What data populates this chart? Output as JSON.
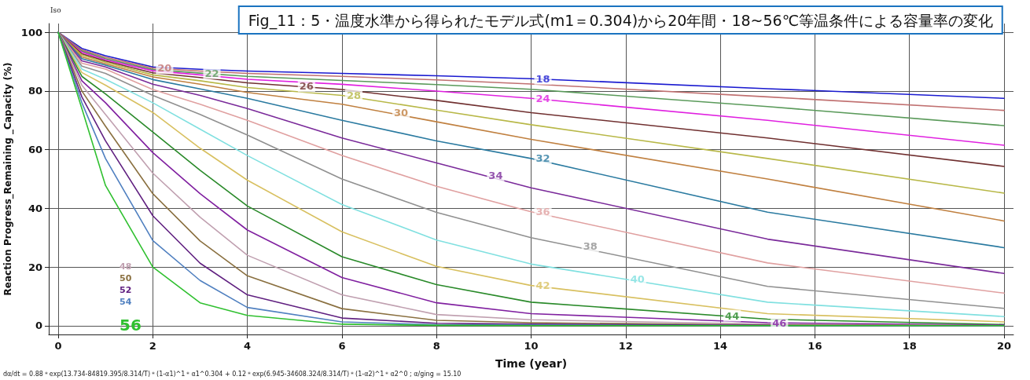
{
  "chart_data": {
    "type": "line",
    "title": "Fig_11：5・温度水準から得られたモデル式(m1＝0.304)から20年間・18~56℃等温条件による容量率の変化",
    "xlabel": "Time (year)",
    "ylabel": "Reaction Progress_Remaining _Capacity (%)",
    "x": [
      0,
      0.5,
      1,
      2,
      3,
      4,
      6,
      8,
      10,
      15,
      20
    ],
    "series": [
      {
        "color": "#1a1ad0",
        "values": [
          100,
          94.5,
          92,
          88.2,
          87.4,
          86.8,
          86,
          85.2,
          84.2,
          80.8,
          77.5
        ]
      },
      {
        "color": "#c07070",
        "values": [
          100,
          94,
          91.5,
          87.8,
          86.8,
          86,
          85,
          83.8,
          82.4,
          78,
          73.4
        ]
      },
      {
        "color": "#5a9a5a",
        "values": [
          100,
          93.6,
          91,
          87.3,
          86.1,
          85,
          83.6,
          82.2,
          80.6,
          74.7,
          68.2
        ]
      },
      {
        "color": "#e020e0",
        "values": [
          100,
          93.2,
          90.6,
          86.9,
          85.5,
          84,
          82.3,
          80,
          77.5,
          70,
          61.5
        ]
      },
      {
        "color": "#703030",
        "values": [
          100,
          92.7,
          90.2,
          86.2,
          84.6,
          82.8,
          80.5,
          76.8,
          72.6,
          64,
          54.3
        ]
      },
      {
        "color": "#b8b848",
        "values": [
          100,
          92.2,
          89.8,
          85.5,
          83.5,
          81.2,
          78.5,
          73.5,
          68.5,
          57,
          45.2
        ]
      },
      {
        "color": "#c08040",
        "values": [
          100,
          91.6,
          89.3,
          84.8,
          82.3,
          79.5,
          75.5,
          69.5,
          63.5,
          50,
          35.7
        ]
      },
      {
        "color": "#2a7aa0",
        "values": [
          100,
          91,
          88.8,
          83.9,
          80.7,
          77.5,
          70,
          63,
          57,
          38.7,
          26.6
        ]
      },
      {
        "color": "#7a2a9a",
        "values": [
          100,
          90.3,
          88.2,
          82.3,
          78.5,
          74,
          64,
          55.5,
          47,
          29.5,
          17.8
        ]
      },
      {
        "color": "#e0a0a0",
        "values": [
          100,
          89.5,
          87.5,
          80.5,
          75.5,
          70,
          58,
          47.5,
          38.8,
          21.4,
          11.1
        ]
      },
      {
        "color": "#909090",
        "values": [
          100,
          88.5,
          86,
          78.5,
          72,
          65,
          50,
          38.6,
          30,
          13.4,
          5.9
        ]
      },
      {
        "color": "#80e0e0",
        "values": [
          100,
          87.5,
          84,
          76,
          67,
          58,
          41.3,
          29.2,
          21,
          8,
          3.1
        ]
      },
      {
        "color": "#d8c060",
        "values": [
          100,
          86.3,
          82,
          72.7,
          60.5,
          49.6,
          32,
          20.2,
          13.7,
          4.1,
          1.3
        ]
      },
      {
        "color": "#2a8a2a",
        "values": [
          100,
          85,
          79,
          66,
          53,
          40.8,
          23.5,
          14,
          8,
          2.2,
          0.4
        ]
      },
      {
        "color": "#8020a0",
        "values": [
          100,
          83.5,
          76,
          59,
          45,
          32.6,
          16.4,
          7.8,
          4.1,
          1,
          0.2
        ]
      },
      {
        "color": "#c0a0b0",
        "values": [
          100,
          82,
          72,
          52,
          37,
          24,
          10.5,
          3.8,
          2,
          0.5,
          0
        ]
      },
      {
        "color": "#8a7040",
        "values": [
          100,
          80,
          68,
          45,
          28.9,
          17,
          5.8,
          1.8,
          1,
          0.2,
          0
        ]
      },
      {
        "color": "#602080",
        "values": [
          100,
          78,
          63,
          37.5,
          21.3,
          10.5,
          2.6,
          0.8,
          0.5,
          0.1,
          0
        ]
      },
      {
        "color": "#5080c0",
        "values": [
          100,
          76,
          57,
          29,
          15.4,
          6.2,
          1.3,
          0.3,
          0.2,
          0,
          0
        ]
      },
      {
        "color": "#30c030",
        "values": [
          100,
          74,
          47.8,
          20,
          7.8,
          3.5,
          0.5,
          0.1,
          0,
          0,
          0
        ]
      }
    ],
    "annotations": [
      {
        "text": "18",
        "x": 10,
        "y": 84.2
      },
      {
        "text": "20",
        "x": 2,
        "y": 87.8
      },
      {
        "text": "22",
        "x": 3,
        "y": 86.1
      },
      {
        "text": "24",
        "x": 10,
        "y": 77.5
      },
      {
        "text": "26",
        "x": 5,
        "y": 81.6
      },
      {
        "text": "28",
        "x": 6,
        "y": 78.5
      },
      {
        "text": "30",
        "x": 7,
        "y": 72.5
      },
      {
        "text": "32",
        "x": 10,
        "y": 57
      },
      {
        "text": "34",
        "x": 9,
        "y": 51.2
      },
      {
        "text": "36",
        "x": 10,
        "y": 38.8
      },
      {
        "text": "38",
        "x": 11,
        "y": 27
      },
      {
        "text": "40",
        "x": 12,
        "y": 15.8
      },
      {
        "text": "42",
        "x": 10,
        "y": 13.7
      },
      {
        "text": "44",
        "x": 14,
        "y": 3.4
      },
      {
        "text": "46",
        "x": 15,
        "y": 1
      },
      "48",
      "50",
      "52",
      "54",
      "56",
      "Iso",
      "dα/dt = 0.88＊exp(13.734-84819.395/8.314/T)＊(1-α1)^1＊α1^0.304 + 0.12＊exp(6.945-34608.324/8.314/T)＊(1-α2)^1＊α2^0 ; α/ging = 15.10"
    ],
    "xlim": [
      -0.2,
      20.2
    ],
    "xticks": [
      0,
      2,
      4,
      6,
      8,
      10,
      12,
      14,
      16,
      18,
      20
    ],
    "ylim": [
      -3,
      103
    ],
    "yticks": [
      0,
      20,
      40,
      60,
      80,
      100
    ],
    "grid": true,
    "marker": "none",
    "line_style": "solid"
  }
}
